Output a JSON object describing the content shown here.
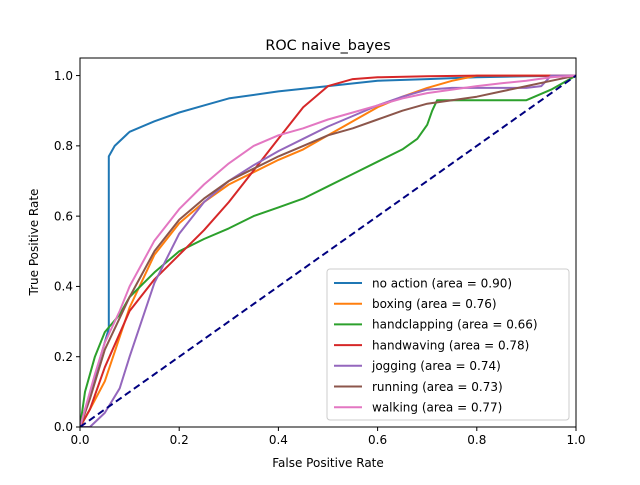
{
  "chart_data": {
    "type": "line",
    "title": "ROC naive_bayes",
    "xlabel": "False Positive Rate",
    "ylabel": "True Positive Rate",
    "xlim": [
      0.0,
      1.0
    ],
    "ylim": [
      0.0,
      1.05
    ],
    "xticks": [
      "0.0",
      "0.2",
      "0.4",
      "0.6",
      "0.8",
      "1.0"
    ],
    "yticks": [
      "0.0",
      "0.2",
      "0.4",
      "0.6",
      "0.8",
      "1.0"
    ],
    "grid": false,
    "legend_position": "lower-right",
    "reference_line": {
      "style": "dashed",
      "color": "#000080",
      "x": [
        0.0,
        1.0
      ],
      "y": [
        0.0,
        1.0
      ]
    },
    "series": [
      {
        "name": "no action (area = 0.90)",
        "color": "#1f77b4",
        "x": [
          0.0,
          0.058,
          0.058,
          0.07,
          0.1,
          0.15,
          0.2,
          0.25,
          0.3,
          0.4,
          0.5,
          0.6,
          0.7,
          0.8,
          0.9,
          1.0
        ],
        "y": [
          0.0,
          0.28,
          0.77,
          0.8,
          0.84,
          0.87,
          0.895,
          0.915,
          0.935,
          0.955,
          0.97,
          0.985,
          0.99,
          0.995,
          0.998,
          1.0
        ]
      },
      {
        "name": "boxing (area = 0.76)",
        "color": "#ff7f0e",
        "x": [
          0.0,
          0.02,
          0.05,
          0.1,
          0.15,
          0.2,
          0.25,
          0.3,
          0.35,
          0.4,
          0.45,
          0.5,
          0.55,
          0.6,
          0.65,
          0.7,
          0.75,
          0.8,
          0.9,
          1.0
        ],
        "y": [
          0.0,
          0.05,
          0.13,
          0.34,
          0.49,
          0.58,
          0.64,
          0.69,
          0.725,
          0.76,
          0.79,
          0.83,
          0.87,
          0.91,
          0.94,
          0.965,
          0.985,
          1.0,
          1.0,
          1.0
        ]
      },
      {
        "name": "handclapping (area = 0.66)",
        "color": "#2ca02c",
        "x": [
          0.0,
          0.01,
          0.03,
          0.05,
          0.08,
          0.1,
          0.15,
          0.2,
          0.25,
          0.3,
          0.35,
          0.4,
          0.45,
          0.5,
          0.55,
          0.6,
          0.65,
          0.68,
          0.7,
          0.71,
          0.72,
          0.75,
          0.8,
          0.85,
          0.9,
          0.95,
          1.0
        ],
        "y": [
          0.0,
          0.1,
          0.2,
          0.27,
          0.32,
          0.37,
          0.44,
          0.5,
          0.535,
          0.565,
          0.6,
          0.625,
          0.65,
          0.685,
          0.72,
          0.755,
          0.79,
          0.82,
          0.86,
          0.9,
          0.93,
          0.93,
          0.93,
          0.93,
          0.93,
          0.96,
          1.0
        ]
      },
      {
        "name": "handwaving (area = 0.78)",
        "color": "#d62728",
        "x": [
          0.0,
          0.02,
          0.05,
          0.1,
          0.15,
          0.2,
          0.25,
          0.3,
          0.35,
          0.4,
          0.45,
          0.5,
          0.55,
          0.6,
          0.7,
          0.8,
          0.9,
          1.0
        ],
        "y": [
          0.0,
          0.05,
          0.17,
          0.33,
          0.42,
          0.49,
          0.56,
          0.64,
          0.73,
          0.82,
          0.91,
          0.97,
          0.99,
          0.995,
          0.998,
          1.0,
          1.0,
          1.0
        ]
      },
      {
        "name": "jogging (area = 0.74)",
        "color": "#9467bd",
        "x": [
          0.0,
          0.02,
          0.05,
          0.08,
          0.1,
          0.15,
          0.2,
          0.25,
          0.3,
          0.35,
          0.4,
          0.45,
          0.5,
          0.55,
          0.6,
          0.65,
          0.7,
          0.75,
          0.8,
          0.85,
          0.9,
          0.93,
          0.95,
          1.0
        ],
        "y": [
          0.0,
          0.0,
          0.04,
          0.11,
          0.2,
          0.41,
          0.55,
          0.64,
          0.7,
          0.745,
          0.785,
          0.82,
          0.855,
          0.885,
          0.915,
          0.94,
          0.96,
          0.965,
          0.965,
          0.965,
          0.965,
          0.97,
          1.0,
          1.0
        ]
      },
      {
        "name": "running (area = 0.73)",
        "color": "#8c564b",
        "x": [
          0.0,
          0.02,
          0.05,
          0.1,
          0.15,
          0.2,
          0.25,
          0.3,
          0.35,
          0.4,
          0.45,
          0.5,
          0.55,
          0.6,
          0.65,
          0.7,
          0.75,
          0.8,
          0.85,
          0.9,
          0.95,
          1.0
        ],
        "y": [
          0.0,
          0.08,
          0.22,
          0.37,
          0.5,
          0.59,
          0.65,
          0.7,
          0.735,
          0.77,
          0.8,
          0.83,
          0.85,
          0.875,
          0.9,
          0.92,
          0.93,
          0.94,
          0.955,
          0.97,
          0.985,
          1.0
        ]
      },
      {
        "name": "walking (area = 0.77)",
        "color": "#e377c2",
        "x": [
          0.0,
          0.01,
          0.03,
          0.05,
          0.08,
          0.1,
          0.15,
          0.2,
          0.25,
          0.3,
          0.35,
          0.4,
          0.45,
          0.5,
          0.55,
          0.6,
          0.65,
          0.7,
          0.75,
          0.8,
          0.85,
          0.9,
          0.95,
          1.0
        ],
        "y": [
          0.0,
          0.05,
          0.15,
          0.24,
          0.33,
          0.4,
          0.53,
          0.62,
          0.69,
          0.75,
          0.8,
          0.83,
          0.85,
          0.875,
          0.895,
          0.915,
          0.935,
          0.95,
          0.96,
          0.97,
          0.978,
          0.985,
          0.995,
          1.0
        ]
      }
    ]
  }
}
